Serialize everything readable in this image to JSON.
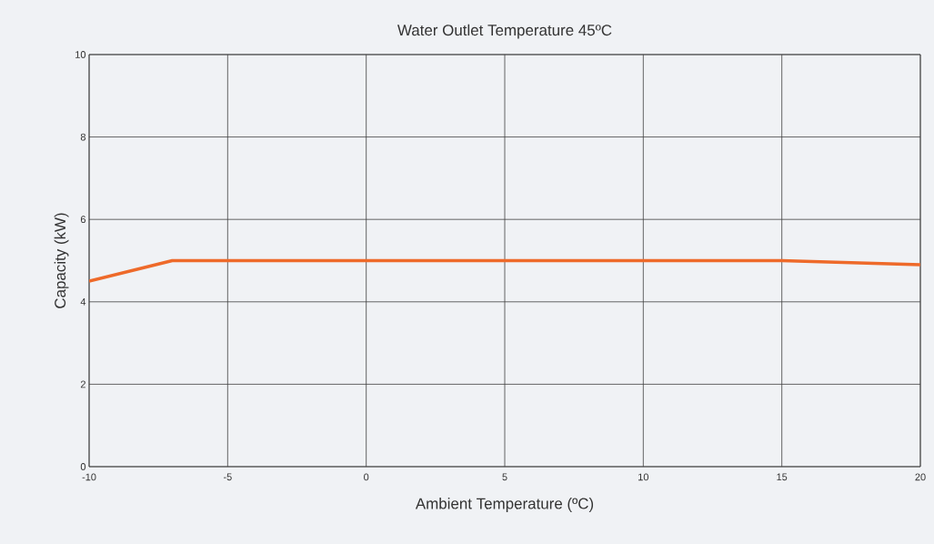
{
  "chart_data": {
    "type": "line",
    "title": "Water Outlet Temperature 45ºC",
    "xlabel": "Ambient Temperature (ºC)",
    "ylabel": "Capacity (kW)",
    "series": [
      {
        "color": "#ee6a2a",
        "x": [
          -10,
          -7,
          15,
          20
        ],
        "values": [
          4.5,
          5,
          5,
          4.9
        ]
      }
    ],
    "xlim": [
      -10,
      20
    ],
    "xticks": [
      -10,
      -5,
      0,
      5,
      10,
      15,
      20
    ],
    "ylim": [
      0,
      10
    ],
    "yticks": [
      0,
      2,
      4,
      6,
      8,
      10
    ],
    "grid": true,
    "marker": "none",
    "line_style": "solid"
  }
}
